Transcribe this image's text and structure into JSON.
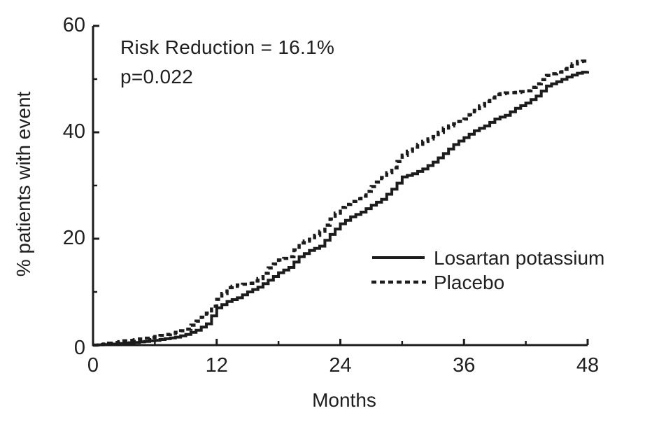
{
  "colors": {
    "ink": "#1c1c1c",
    "background": "#ffffff"
  },
  "annotation": {
    "line1": "Risk Reduction = 16.1%",
    "line2": "p=0.022"
  },
  "chart_data": {
    "type": "line",
    "subtype": "kaplan-meier-step",
    "title": "",
    "xlabel": "Months",
    "ylabel": "% patients with event",
    "xlim": [
      0,
      48
    ],
    "ylim": [
      0,
      60
    ],
    "grid": false,
    "x_major_ticks": [
      0,
      12,
      24,
      36,
      48
    ],
    "x_minor_ticks": [
      6,
      18,
      30,
      42
    ],
    "y_major_ticks": [
      0,
      20,
      40,
      60
    ],
    "y_minor_ticks": [
      10,
      30,
      50
    ],
    "legend_position": "inside-right-middle",
    "annotations": [
      "Risk Reduction = 16.1%",
      "p=0.022"
    ],
    "x": [
      0,
      1,
      2,
      3,
      4,
      5,
      6,
      7,
      8,
      9,
      10,
      11,
      12,
      13,
      14,
      15,
      16,
      17,
      18,
      19,
      20,
      21,
      22,
      23,
      24,
      25,
      26,
      27,
      28,
      29,
      30,
      31,
      32,
      33,
      34,
      35,
      36,
      37,
      38,
      39,
      40,
      41,
      42,
      43,
      44,
      45,
      46,
      47,
      48
    ],
    "series": [
      {
        "name": "Losartan potassium",
        "style": "solid",
        "color": "#1c1c1c",
        "values": [
          0,
          0.1,
          0.2,
          0.4,
          0.5,
          0.7,
          0.9,
          1.2,
          1.5,
          2.0,
          2.8,
          4.0,
          7.0,
          8.2,
          8.9,
          10.0,
          10.9,
          12.2,
          13.6,
          14.6,
          16.6,
          17.8,
          18.6,
          20.8,
          22.8,
          24.1,
          25.0,
          26.3,
          27.4,
          29.3,
          31.6,
          32.2,
          33.1,
          34.4,
          36.0,
          37.7,
          39.0,
          40.3,
          41.2,
          42.5,
          43.2,
          44.5,
          45.5,
          46.8,
          48.7,
          49.5,
          50.4,
          51.1,
          51.5
        ]
      },
      {
        "name": "Placebo",
        "style": "dashed",
        "color": "#1c1c1c",
        "values": [
          0,
          0.2,
          0.5,
          0.8,
          1.0,
          1.3,
          1.6,
          2.0,
          2.4,
          3.0,
          4.5,
          6.0,
          8.6,
          10.8,
          11.3,
          11.6,
          12.5,
          14.5,
          16.0,
          16.6,
          19.2,
          19.9,
          21.4,
          23.7,
          25.9,
          27.0,
          28.0,
          29.8,
          31.5,
          33.3,
          35.7,
          37.2,
          38.3,
          39.2,
          40.8,
          41.6,
          42.5,
          44.1,
          45.8,
          47.1,
          47.4,
          47.5,
          47.8,
          49.1,
          50.7,
          51.3,
          52.4,
          53.3,
          53.5
        ]
      }
    ]
  }
}
